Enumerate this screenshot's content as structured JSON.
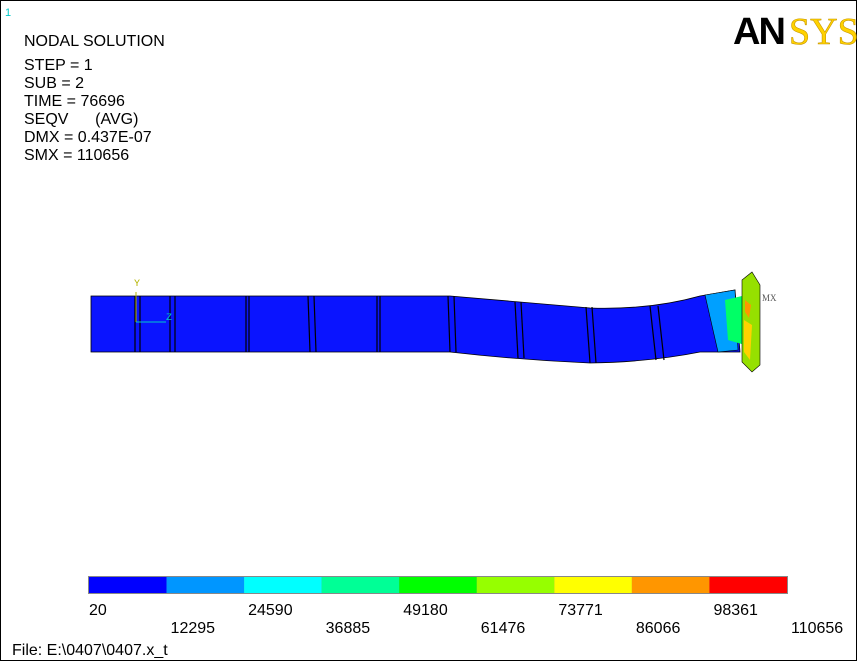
{
  "screen": {
    "window_number": "1",
    "header": {
      "title": "NODAL SOLUTION",
      "lines": [
        "STEP = 1",
        "SUB = 2",
        "TIME = 76696",
        "SEQV      (AVG)",
        "DMX = 0.437E-07",
        "SMX = 110656"
      ]
    },
    "logo": {
      "bold": "AN",
      "outline": "SYS"
    },
    "triad": {
      "y": "Y",
      "z": "Z",
      "max_marker": "MX"
    },
    "legend": {
      "levels": [
        20,
        12295,
        24590,
        36885,
        49180,
        61476,
        73771,
        86066,
        98361,
        110656
      ],
      "colors": [
        "#0000ff",
        "#0096ff",
        "#00ffff",
        "#00ff96",
        "#00ff00",
        "#96ff00",
        "#ffff00",
        "#ff9600",
        "#ff0000"
      ]
    },
    "footer": "File: E:\\0407\\0407.x_t"
  }
}
